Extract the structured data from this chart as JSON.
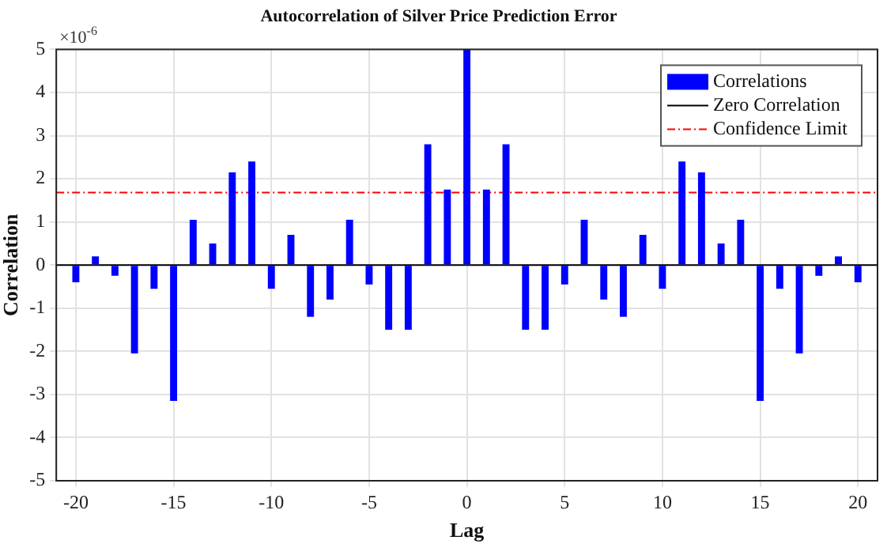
{
  "chart_data": {
    "type": "bar",
    "title": "Autocorrelation of Silver Price Prediction Error",
    "xlabel": "Lag",
    "ylabel": "Correlation",
    "x": [
      -20,
      -19,
      -18,
      -17,
      -16,
      -15,
      -14,
      -13,
      -12,
      -11,
      -10,
      -9,
      -8,
      -7,
      -6,
      -5,
      -4,
      -3,
      -2,
      -1,
      0,
      1,
      2,
      3,
      4,
      5,
      6,
      7,
      8,
      9,
      10,
      11,
      12,
      13,
      14,
      15,
      16,
      17,
      18,
      19,
      20
    ],
    "series": [
      {
        "name": "Correlations",
        "color": "#0000ff",
        "values": [
          -0.4,
          0.2,
          -0.25,
          -2.05,
          -0.55,
          -3.15,
          1.05,
          0.5,
          2.15,
          2.4,
          -0.55,
          0.7,
          -1.2,
          -0.8,
          1.05,
          -0.45,
          -1.5,
          -1.5,
          2.8,
          1.75,
          5,
          1.75,
          2.8,
          -1.5,
          -1.5,
          -0.45,
          1.05,
          -0.8,
          -1.2,
          0.7,
          -0.55,
          2.4,
          2.15,
          0.5,
          1.05,
          -3.15,
          -0.55,
          -2.05,
          -0.25,
          0.2,
          -0.4
        ]
      }
    ],
    "xlim": [
      -21,
      21
    ],
    "xticks": [
      -20,
      -15,
      -10,
      -5,
      0,
      5,
      10,
      15,
      20
    ],
    "ylim": [
      -5,
      5
    ],
    "yticks": [
      -5,
      -4,
      -3,
      -2,
      -1,
      0,
      1,
      2,
      3,
      4,
      5
    ],
    "ref_lines": [
      {
        "axis": "y",
        "value": 0,
        "label": "Zero Correlation",
        "color": "#000000",
        "line_style": "solid"
      },
      {
        "axis": "y",
        "value": 1.68,
        "label": "Confidence Limit",
        "color": "#ff0000",
        "line_style": "dashdot"
      }
    ],
    "annotations": [
      "×10$^{-6}$"
    ],
    "grid": true,
    "legend": "top right"
  }
}
